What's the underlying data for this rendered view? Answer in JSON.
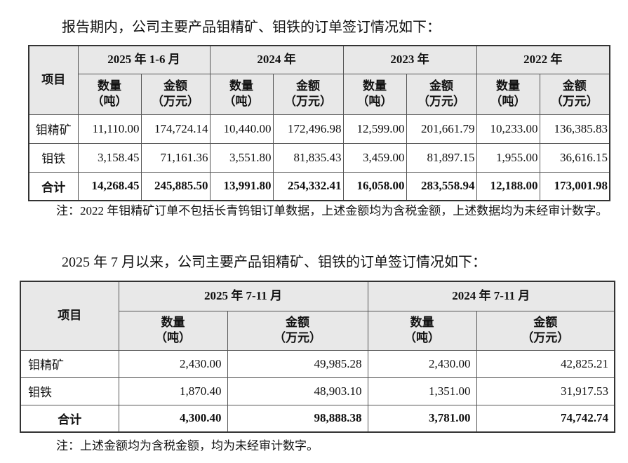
{
  "intro1": "报告期内，公司主要产品钼精矿、钼铁的订单签订情况如下：",
  "table1": {
    "header_row1": [
      "项目",
      "2025 年 1-6 月",
      "2024 年",
      "2023 年",
      "2022 年"
    ],
    "header_row2": [
      [
        "数量",
        "（吨）"
      ],
      [
        "金额",
        "（万元）"
      ],
      [
        "数量",
        "（吨）"
      ],
      [
        "金额",
        "（万元）"
      ],
      [
        "数量",
        "（吨）"
      ],
      [
        "金额",
        "（万元）"
      ],
      [
        "数量",
        "（吨）"
      ],
      [
        "金额",
        "（万元）"
      ]
    ],
    "rows": [
      [
        "钼精矿",
        "11,110.00",
        "174,724.14",
        "10,440.00",
        "172,496.98",
        "12,599.00",
        "201,661.79",
        "10,233.00",
        "136,385.83"
      ],
      [
        "钼铁",
        "3,158.45",
        "71,161.36",
        "3,551.80",
        "81,835.43",
        "3,459.00",
        "81,897.15",
        "1,955.00",
        "36,616.15"
      ],
      [
        "合计",
        "14,268.45",
        "245,885.50",
        "13,991.80",
        "254,332.41",
        "16,058.00",
        "283,558.94",
        "12,188.00",
        "173,001.98"
      ]
    ]
  },
  "note1": "注：2022 年钼精矿订单不包括长青钨钼订单数据，上述金额均为含税金额，上述数据均为未经审计数字。",
  "intro2": "2025 年 7 月以来，公司主要产品钼精矿、钼铁的订单签订情况如下：",
  "table2": {
    "header_row1": [
      "项目",
      "2025 年 7-11 月",
      "2024 年 7-11 月"
    ],
    "header_row2": [
      [
        "数量",
        "（吨）"
      ],
      [
        "金额",
        "（万元）"
      ],
      [
        "数量",
        "（吨）"
      ],
      [
        "金额",
        "（万元）"
      ]
    ],
    "rows": [
      [
        "钼精矿",
        "2,430.00",
        "49,985.28",
        "2,430.00",
        "42,825.21"
      ],
      [
        "钼铁",
        "1,870.40",
        "48,903.10",
        "1,351.00",
        "31,917.53"
      ],
      [
        "合计",
        "4,300.40",
        "98,888.38",
        "3,781.00",
        "74,742.74"
      ]
    ]
  },
  "note2": "注：上述金额均为含税金额，均为未经审计数字。"
}
